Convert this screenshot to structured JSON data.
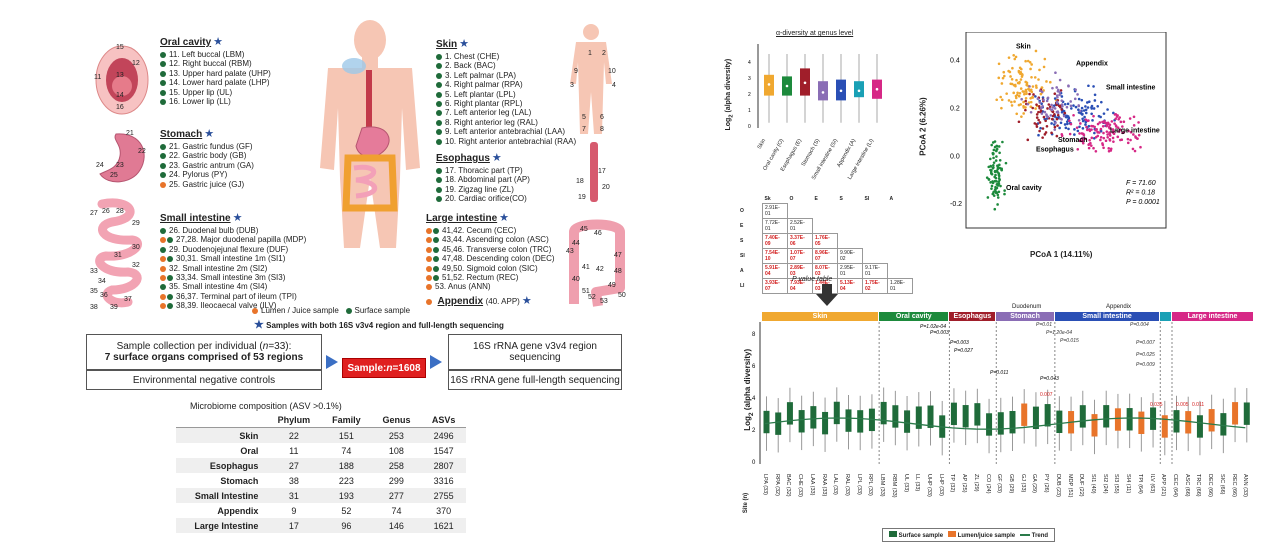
{
  "regions": {
    "oral": {
      "title": "Oral cavity",
      "items": [
        {
          "c": "g",
          "t": "11. Left buccal (LBM)"
        },
        {
          "c": "g",
          "t": "12. Right buccal (RBM)"
        },
        {
          "c": "g",
          "t": "13. Upper hard palate (UHP)"
        },
        {
          "c": "g",
          "t": "14. Lower hard palate (LHP)"
        },
        {
          "c": "g",
          "t": "15. Upper lip (UL)"
        },
        {
          "c": "g",
          "t": "16. Lower lip (LL)"
        }
      ]
    },
    "stomach": {
      "title": "Stomach",
      "items": [
        {
          "c": "g",
          "t": "21. Gastric fundus (GF)"
        },
        {
          "c": "g",
          "t": "22. Gastric body (GB)"
        },
        {
          "c": "g",
          "t": "23. Gastric antrum (GA)"
        },
        {
          "c": "g",
          "t": "24. Pylorus (PY)"
        },
        {
          "c": "o",
          "t": "25. Gastric juice (GJ)"
        }
      ]
    },
    "small": {
      "title": "Small intestine",
      "items": [
        {
          "c": "g",
          "t": "26. Duodenal bulb (DUB)"
        },
        {
          "c": "og",
          "t": "27,28. Major duodenal papilla (MDP)"
        },
        {
          "c": "g",
          "t": "29. Duodenojejunal flexure (DUF)"
        },
        {
          "c": "og",
          "t": "30,31. Small intestine 1m (SI1)"
        },
        {
          "c": "o",
          "t": "32. Small intestine 2m (SI2)"
        },
        {
          "c": "og",
          "t": "33,34. Small intestine 3m (SI3)"
        },
        {
          "c": "g",
          "t": "35. Small intestine 4m (SI4)"
        },
        {
          "c": "og",
          "t": "36,37. Terminal part of ileum (TPI)"
        },
        {
          "c": "og",
          "t": "38,39. Ileocaecal valve (ILV)"
        }
      ]
    },
    "skin": {
      "title": "Skin",
      "items": [
        {
          "c": "g",
          "t": "1. Chest (CHE)"
        },
        {
          "c": "g",
          "t": "2. Back (BAC)"
        },
        {
          "c": "g",
          "t": "3. Left palmar (LPA)"
        },
        {
          "c": "g",
          "t": "4. Right palmar (RPA)"
        },
        {
          "c": "g",
          "t": "5. Left plantar (LPL)"
        },
        {
          "c": "g",
          "t": "6. Right plantar (RPL)"
        },
        {
          "c": "g",
          "t": "7. Left anterior leg (LAL)"
        },
        {
          "c": "g",
          "t": "8. Right anterior leg (RAL)"
        },
        {
          "c": "g",
          "t": "9. Left anterior antebrachial (LAA)"
        },
        {
          "c": "g",
          "t": "10. Right anterior antebrachial (RAA)"
        }
      ]
    },
    "eso": {
      "title": "Esophagus",
      "items": [
        {
          "c": "g",
          "t": "17. Thoracic part (TP)"
        },
        {
          "c": "g",
          "t": "18. Abdominal part (AP)"
        },
        {
          "c": "g",
          "t": "19. Zigzag line (ZL)"
        },
        {
          "c": "g",
          "t": "20. Cardiac orifice(CO)"
        }
      ]
    },
    "large": {
      "title": "Large intestine",
      "items": [
        {
          "c": "og",
          "t": "41,42. Cecum (CEC)"
        },
        {
          "c": "og",
          "t": "43,44. Ascending colon (ASC)"
        },
        {
          "c": "og",
          "t": "45,46. Transverse colon (TRC)"
        },
        {
          "c": "og",
          "t": "47,48. Descending colon (DEC)"
        },
        {
          "c": "og",
          "t": "49,50. Sigmoid colon (SIC)"
        },
        {
          "c": "og",
          "t": "51,52. Rectum (REC)"
        },
        {
          "c": "o",
          "t": "53. Anus (ANN)"
        }
      ]
    },
    "appendix": {
      "title": "Appendix",
      "suffix": "(40. APP)"
    }
  },
  "legend_top": {
    "lumen": "Lumen / Juice sample",
    "surface": "Surface sample",
    "both": "Samples with both 16S v3v4 region and full-length sequencing"
  },
  "oral_nums": [
    "15",
    "12",
    "11",
    "13",
    "16",
    "14"
  ],
  "stomach_nums": [
    "21",
    "22",
    "24",
    "25",
    "23"
  ],
  "small_nums": [
    "27",
    "26",
    "28",
    "29",
    "30",
    "31",
    "32",
    "33",
    "34",
    "36",
    "35",
    "37",
    "38",
    "39"
  ],
  "skin_nums": [
    "1",
    "2",
    "3",
    "4",
    "9",
    "10",
    "5",
    "6",
    "7",
    "8"
  ],
  "eso_nums": [
    "17",
    "18",
    "19",
    "20"
  ],
  "large_nums": [
    "45",
    "46",
    "44",
    "43",
    "47",
    "41",
    "42",
    "48",
    "49",
    "40",
    "51",
    "50",
    "53",
    "52"
  ],
  "flow": {
    "box1a": "Sample collection per individual (",
    "box1n": "n",
    "box1b": "=33):",
    "box1c": "7 surface organs comprised of 53 regions",
    "box2": "Environmental negative controls",
    "sample_a": "Sample: ",
    "sample_n": "n",
    "sample_b": "=1608",
    "box3": "16S rRNA gene v3v4 region sequencing",
    "box4": "16S rRNA gene full-length sequencing"
  },
  "composition": {
    "title": "Microbiome composition (ASV >0.1%)",
    "headers": [
      "",
      "Phylum",
      "Family",
      "Genus",
      "ASVs"
    ],
    "rows": [
      [
        "Skin",
        "22",
        "151",
        "253",
        "2496"
      ],
      [
        "Oral",
        "11",
        "74",
        "108",
        "1547"
      ],
      [
        "Esophagus",
        "27",
        "188",
        "258",
        "2807"
      ],
      [
        "Stomach",
        "38",
        "223",
        "299",
        "3316"
      ],
      [
        "Small Intestine",
        "31",
        "193",
        "277",
        "2755"
      ],
      [
        "Appendix",
        "9",
        "52",
        "74",
        "370"
      ],
      [
        "Large Intestine",
        "17",
        "96",
        "146",
        "1621"
      ]
    ]
  },
  "alpha": {
    "title": "α-diversity at genus level",
    "ylabel_a": "Log",
    "ylabel_sub": "2",
    "ylabel_b": " (alpha diversity)",
    "ptitle": "P value table",
    "pheads": [
      "Sk",
      "O",
      "E",
      "S",
      "SI",
      "A"
    ],
    "prows": [
      {
        "h": "O",
        "v": [
          "2.91E-01"
        ]
      },
      {
        "h": "E",
        "v": [
          "7.72E-01",
          "2.52E-01"
        ]
      },
      {
        "h": "S",
        "v": [
          "7.40E-09",
          "3.37E-06",
          "1.76E-05"
        ]
      },
      {
        "h": "SI",
        "v": [
          "7.54E-10",
          "1.07E-07",
          "8.96E-07",
          "9.90E-02"
        ]
      },
      {
        "h": "A",
        "v": [
          "5.91E-04",
          "2.89E-03",
          "8.07E-03",
          "2.95E-01",
          "9.17E-01"
        ]
      },
      {
        "h": "LI",
        "v": [
          "3.93E-07",
          "7.93E-04",
          "1.44E-03",
          "5.13E-04",
          "1.75E-02",
          "1.28E-01"
        ]
      }
    ],
    "pred": [
      [],
      [],
      [
        true,
        true,
        true
      ],
      [
        true,
        true,
        true,
        false
      ],
      [
        true,
        true,
        true,
        false,
        false
      ],
      [
        true,
        true,
        true,
        true,
        true,
        false
      ]
    ]
  },
  "pcoa": {
    "xlabel": "PCoA 1 (14.11%)",
    "ylabel": "PCoA 2 (6.26%)",
    "labels": {
      "skin": "Skin",
      "appendix": "Appendix",
      "small": "Small intestine",
      "large": "Large intestine",
      "stomach": "Stomach",
      "eso": "Esophagus",
      "oral": "Oral cavity"
    },
    "stats": {
      "f": "F = 71.60",
      "r": "R² = 0.18",
      "p": "P = 0.0001"
    },
    "xticks": [
      "-0.4",
      "-0.2",
      "0.0",
      "0.2",
      "0.4"
    ],
    "yticks": [
      "0.4",
      "0.2",
      "0.0",
      "-0.2"
    ]
  },
  "bottom": {
    "ylabel_a": "Log",
    "ylabel_sub": "2",
    "ylabel_b": " (alpha diversity)",
    "bands": [
      {
        "name": "Skin",
        "color": "#f0a830"
      },
      {
        "name": "Oral cavity",
        "color": "#1d8a3c"
      },
      {
        "name": "Esophagus",
        "color": "#a01e2a"
      },
      {
        "name": "Stomach",
        "color": "#8a6db5"
      },
      {
        "name": "Small intestine",
        "color": "#2a4fb5"
      },
      {
        "name": "",
        "color": "#1aa0b5"
      },
      {
        "name": "Large intestine",
        "color": "#d62886"
      }
    ],
    "top_notes": {
      "duodenum": "Duodenum",
      "appendix": "Appendix"
    },
    "sites": [
      "LPA (33)",
      "RPA (32)",
      "BAC (32)",
      "CHE (33)",
      "LAA (33)",
      "RAA (33)",
      "LAL (33)",
      "RAL (33)",
      "LPL (33)",
      "RPL (33)",
      "LBM (33)",
      "RBM (33)",
      "UL (33)",
      "LL (33)",
      "UHP (33)",
      "LHP (33)",
      "TP (32)",
      "AP (25)",
      "ZL (29)",
      "CO (24)",
      "GF (33)",
      "GB (29)",
      "GJ (33)",
      "GA (29)",
      "PY (26)",
      "DUB (23)",
      "MDP (51)",
      "DUF (22)",
      "SI1 (40)",
      "SI2 (24)",
      "SI3 (55)",
      "SI4 (11)",
      "TPI (64)",
      "ILV (63)",
      "APP (21)",
      "CEC (64)",
      "ASC (66)",
      "TRC (66)",
      "DEC (66)",
      "SIC (66)",
      "REC (66)",
      "ANN (33)"
    ],
    "site_label": "Site (n)",
    "yticks": [
      "0",
      "2",
      "4",
      "6",
      "8"
    ],
    "pvals_black": [
      "P=1.02e-04",
      "P=0.003",
      "P=0.003",
      "P=0.027",
      "P=0.011",
      "P=0.043"
    ],
    "pvals_orange": [
      "P=0.01",
      "P=1.20e-04",
      "P=0.015",
      "P=0.004",
      "P=0.007",
      "P=0.025",
      "P=0.009"
    ],
    "pvals_red": [
      "0.007",
      "0.035",
      "0.005",
      "0.011"
    ],
    "legend": {
      "surface": "Surface sample",
      "lumen": "Lumen/juice sample",
      "trend": "Trend"
    }
  }
}
